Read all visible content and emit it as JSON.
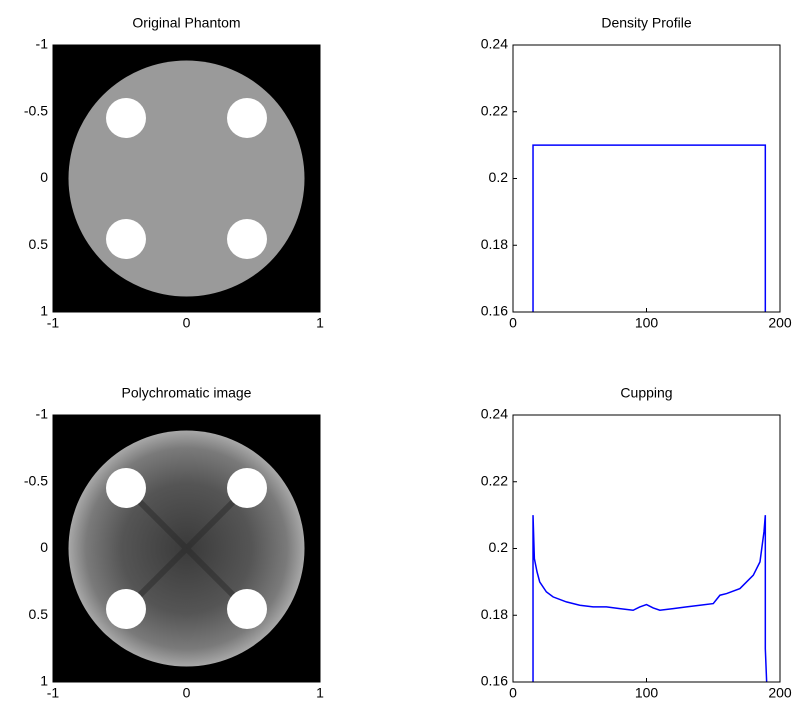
{
  "chart_data": [
    {
      "type": "image",
      "title": "Original Phantom",
      "xlim": [
        -1,
        1
      ],
      "ylim": [
        -1,
        1
      ],
      "yreverse": true,
      "xticks": [
        -1,
        0,
        1
      ],
      "yticks": [
        -1,
        -0.5,
        0,
        0.5,
        1
      ]
    },
    {
      "type": "line",
      "title": "Density Profile",
      "color": "#0000ff",
      "x": [
        15,
        15,
        189,
        189
      ],
      "values": [
        0.16,
        0.21,
        0.21,
        0.16
      ],
      "xlim": [
        0,
        200
      ],
      "ylim": [
        0.16,
        0.24
      ],
      "xticks": [
        0,
        100,
        200
      ],
      "yticks": [
        0.16,
        0.18,
        0.2,
        0.22,
        0.24
      ]
    },
    {
      "type": "image",
      "title": "Polychromatic image",
      "xlim": [
        -1,
        1
      ],
      "ylim": [
        -1,
        1
      ],
      "yreverse": true,
      "xticks": [
        -1,
        0,
        1
      ],
      "yticks": [
        -1,
        -0.5,
        0,
        0.5,
        1
      ]
    },
    {
      "type": "line",
      "title": "Cupping",
      "color": "#0000ff",
      "x": [
        15,
        15,
        16,
        18,
        20,
        25,
        30,
        40,
        50,
        60,
        70,
        80,
        90,
        95,
        100,
        105,
        110,
        120,
        130,
        140,
        150,
        155,
        160,
        170,
        180,
        185,
        188,
        189,
        189,
        190
      ],
      "values": [
        0.16,
        0.21,
        0.197,
        0.193,
        0.19,
        0.187,
        0.1855,
        0.184,
        0.183,
        0.1825,
        0.1825,
        0.182,
        0.1815,
        0.1825,
        0.1832,
        0.1822,
        0.1815,
        0.182,
        0.1825,
        0.183,
        0.1835,
        0.186,
        0.1865,
        0.188,
        0.192,
        0.196,
        0.205,
        0.21,
        0.17,
        0.16
      ],
      "xlim": [
        0,
        200
      ],
      "ylim": [
        0.16,
        0.24
      ],
      "xticks": [
        0,
        100,
        200
      ],
      "yticks": [
        0.16,
        0.18,
        0.2,
        0.22,
        0.24
      ]
    }
  ]
}
